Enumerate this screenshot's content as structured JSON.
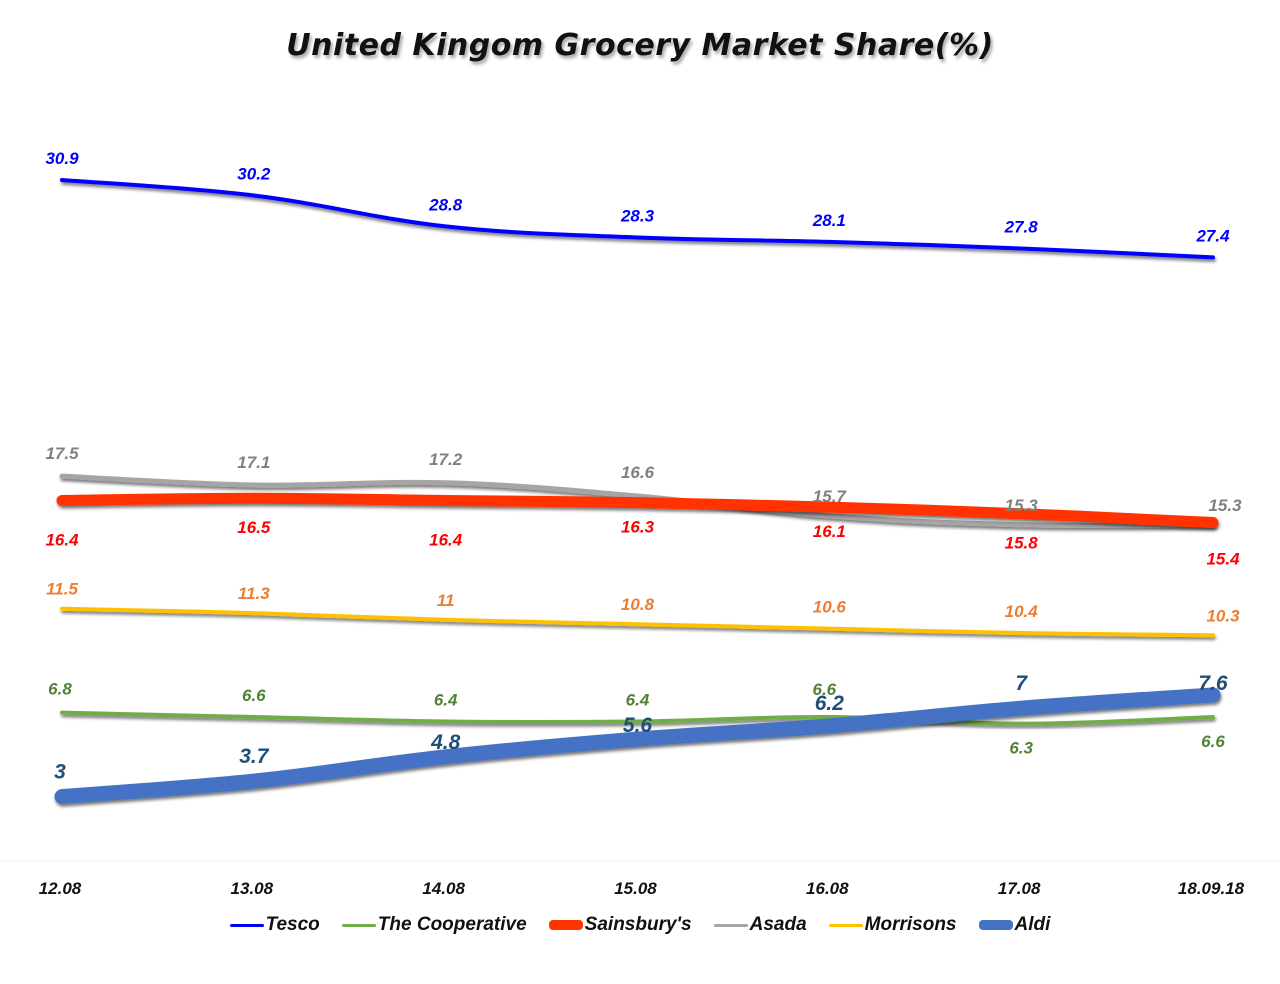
{
  "chart_data": {
    "type": "line",
    "title": "United Kingom Grocery Market Share(%)",
    "xlabel": "",
    "ylabel": "",
    "categories": [
      "12.08",
      "13.08",
      "14.08",
      "15.08",
      "16.08",
      "17.08",
      "18.09.18"
    ],
    "ylim": [
      2,
      32
    ],
    "grid": false,
    "legend_position": "bottom",
    "series": [
      {
        "name": "Tesco",
        "color": "#0000FF",
        "label_color": "#0000FF",
        "values": [
          30.9,
          30.2,
          28.8,
          28.3,
          28.1,
          27.8,
          27.4
        ],
        "labels_position": "above"
      },
      {
        "name": "The Cooperative",
        "color": "#70AD47",
        "label_color": "#538135",
        "values": [
          6.8,
          6.6,
          6.4,
          6.4,
          6.6,
          6.3,
          6.6
        ],
        "labels_position": "mixed"
      },
      {
        "name": "Sainsbury's",
        "color": "#FF3300",
        "label_color": "#FF0000",
        "values": [
          16.4,
          16.5,
          16.4,
          16.3,
          16.1,
          15.8,
          15.4
        ],
        "labels_position": "below"
      },
      {
        "name": "Asada",
        "color": "#A5A5A5",
        "label_color": "#808080",
        "values": [
          17.5,
          17.1,
          17.2,
          16.6,
          15.7,
          15.3,
          15.3
        ],
        "labels_position": "above"
      },
      {
        "name": "Morrisons",
        "color": "#FFC000",
        "label_color": "#ED7D31",
        "values": [
          11.5,
          11.3,
          11,
          10.8,
          10.6,
          10.4,
          10.3
        ],
        "labels_position": "above"
      },
      {
        "name": "Aldi",
        "color": "#4472C4",
        "label_color": "#1F4E79",
        "values": [
          3,
          3.7,
          4.8,
          5.6,
          6.2,
          7,
          7.6
        ],
        "labels_position": "above"
      }
    ]
  }
}
